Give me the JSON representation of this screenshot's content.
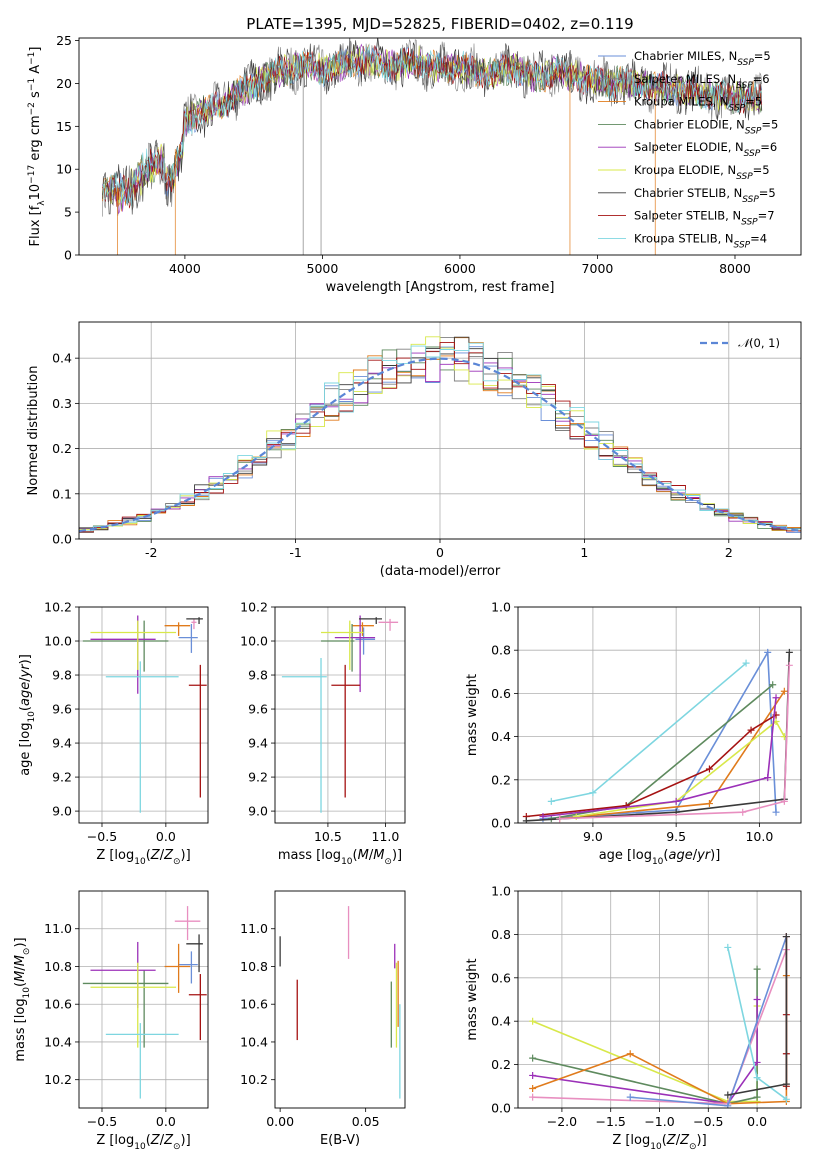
{
  "figure_title": "PLATE=1395, MJD=52825, FIBERID=0402, z=0.119",
  "models": [
    {
      "name": "Chabrier MILES",
      "nssp": "5",
      "color": "#6a8fd8"
    },
    {
      "name": "Salpeter MILES",
      "nssp": "6",
      "color": "#808080"
    },
    {
      "name": "Kroupa MILES",
      "nssp": "5",
      "color": "#e07b1c"
    },
    {
      "name": "Chabrier ELODIE",
      "nssp": "5",
      "color": "#5e8a5e"
    },
    {
      "name": "Salpeter ELODIE",
      "nssp": "6",
      "color": "#9b30b8"
    },
    {
      "name": "Kroupa ELODIE",
      "nssp": "5",
      "color": "#d8e84a"
    },
    {
      "name": "Chabrier STELIB",
      "nssp": "5",
      "color": "#3a3a3a"
    },
    {
      "name": "Salpeter STELIB",
      "nssp": "7",
      "color": "#a51212"
    },
    {
      "name": "Kroupa STELIB",
      "nssp": "4",
      "color": "#7ed6e0"
    }
  ],
  "chart_data": [
    {
      "id": "spectrum",
      "type": "line",
      "xlabel": "wavelength [Angstrom, rest frame]",
      "ylabel": "Flux [f_λ10^-17 erg cm^-2 s^-1 A^-1]",
      "xlim": [
        3230,
        8480
      ],
      "ylim": [
        0,
        25.3
      ],
      "xticks": [
        4000,
        5000,
        6000,
        7000,
        8000
      ],
      "yticks": [
        0,
        5,
        10,
        15,
        20,
        25
      ],
      "x": [
        3400,
        3500,
        3600,
        3700,
        3800,
        3900,
        4000,
        4100,
        4200,
        4300,
        4400,
        4500,
        4600,
        4700,
        4800,
        4900,
        5000,
        5100,
        5200,
        5300,
        5400,
        5500,
        5600,
        5700,
        5800,
        5900,
        6000,
        6100,
        6200,
        6300,
        6400,
        6500,
        6600,
        6700,
        6800,
        6900,
        7000,
        7100,
        7200,
        7300,
        7400,
        7500,
        7600,
        7700,
        7800,
        7900,
        8000,
        8100,
        8200
      ],
      "y": [
        7.5,
        7.8,
        8.5,
        10.5,
        12.0,
        11.0,
        15.5,
        16.5,
        17.0,
        17.8,
        19.0,
        19.8,
        20.8,
        21.5,
        21.8,
        22.0,
        21.5,
        22.0,
        22.5,
        22.8,
        22.5,
        22.0,
        22.3,
        22.5,
        22.0,
        21.8,
        22.0,
        21.5,
        21.0,
        21.5,
        21.8,
        21.0,
        20.8,
        21.5,
        21.0,
        20.5,
        20.3,
        20.0,
        20.3,
        19.8,
        19.5,
        19.5,
        19.3,
        19.0,
        18.8,
        18.5,
        18.3,
        18.5,
        18.2
      ]
    },
    {
      "id": "residuals",
      "type": "step",
      "xlabel": "(data-model)/error",
      "ylabel": "Normed distribution",
      "xlim": [
        -2.5,
        2.5
      ],
      "ylim": [
        0,
        0.48
      ],
      "xticks": [
        -2,
        -1,
        0,
        1,
        2
      ],
      "yticks": [
        0.0,
        0.1,
        0.2,
        0.3,
        0.4
      ],
      "grid": true,
      "legend": "N(0,1)",
      "bin_width": 0.1
    },
    {
      "id": "age_vs_Z",
      "type": "errorbar",
      "xlabel": "Z [log10(Z/Z⊙)]",
      "ylabel": "age [log10(age/yr)]",
      "xlim": [
        -0.68,
        0.33
      ],
      "ylim": [
        8.93,
        10.2
      ],
      "xticks": [
        -0.5,
        0.0
      ],
      "yticks": [
        9.0,
        9.2,
        9.4,
        9.6,
        9.8,
        10.0,
        10.2
      ],
      "grid": true,
      "points": [
        {
          "x": 0.2,
          "y": 10.02,
          "xerr": [
            0.1,
            0.05
          ],
          "yerr": [
            0.09,
            0.08
          ],
          "color": "#6a8fd8"
        },
        {
          "x": 0.22,
          "y": 10.11,
          "xerr": [
            0.02,
            0.02
          ],
          "yerr": [
            0.04,
            0.02
          ],
          "color": "#e88fc0"
        },
        {
          "x": 0.1,
          "y": 10.09,
          "xerr": [
            0.11,
            0.09
          ],
          "yerr": [
            0.06,
            0.02
          ],
          "color": "#e07b1c"
        },
        {
          "x": -0.17,
          "y": 10.0,
          "xerr": [
            0.48,
            0.19
          ],
          "yerr": [
            0.18,
            0.12
          ],
          "color": "#5e8a5e"
        },
        {
          "x": -0.22,
          "y": 10.01,
          "xerr": [
            0.37,
            0.14
          ],
          "yerr": [
            0.32,
            0.14
          ],
          "color": "#9b30b8"
        },
        {
          "x": -0.22,
          "y": 10.05,
          "xerr": [
            0.37,
            0.3
          ],
          "yerr": [
            0.22,
            0.07
          ],
          "color": "#d8e84a"
        },
        {
          "x": 0.26,
          "y": 10.13,
          "xerr": [
            0.1,
            0.03
          ],
          "yerr": [
            0.03,
            0.01
          ],
          "color": "#3a3a3a"
        },
        {
          "x": 0.27,
          "y": 9.74,
          "xerr": [
            0.09,
            0.05
          ],
          "yerr": [
            0.66,
            0.12
          ],
          "color": "#a51212"
        },
        {
          "x": -0.2,
          "y": 9.79,
          "xerr": [
            0.27,
            0.3
          ],
          "yerr": [
            0.8,
            0.09
          ],
          "color": "#7ed6e0"
        }
      ]
    },
    {
      "id": "age_vs_mass",
      "type": "errorbar",
      "xlabel": "mass [log10(M/M⊙)]",
      "ylabel": "",
      "xlim": [
        10.04,
        11.17
      ],
      "ylim": [
        8.93,
        10.2
      ],
      "xticks": [
        10.5,
        11.0
      ],
      "yticks": [
        9.0,
        9.2,
        9.4,
        9.6,
        9.8,
        10.0,
        10.2
      ],
      "grid": true,
      "points": [
        {
          "x": 10.81,
          "y": 10.01,
          "xerr": [
            0.07,
            0.1
          ],
          "yerr": [
            0.09,
            0.07
          ],
          "color": "#6a8fd8"
        },
        {
          "x": 11.04,
          "y": 10.11,
          "xerr": [
            0.1,
            0.07
          ],
          "yerr": [
            0.05,
            0.02
          ],
          "color": "#e88fc0"
        },
        {
          "x": 10.8,
          "y": 10.09,
          "xerr": [
            0.09,
            0.1
          ],
          "yerr": [
            0.06,
            0.02
          ],
          "color": "#e07b1c"
        },
        {
          "x": 10.71,
          "y": 10.0,
          "xerr": [
            0.27,
            0.02
          ],
          "yerr": [
            0.18,
            0.1
          ],
          "color": "#5e8a5e"
        },
        {
          "x": 10.78,
          "y": 10.02,
          "xerr": [
            0.22,
            0.13
          ],
          "yerr": [
            0.32,
            0.13
          ],
          "color": "#9b30b8"
        },
        {
          "x": 10.69,
          "y": 10.05,
          "xerr": [
            0.25,
            0.12
          ],
          "yerr": [
            0.22,
            0.07
          ],
          "color": "#d8e84a"
        },
        {
          "x": 10.92,
          "y": 10.13,
          "xerr": [
            0.15,
            0.05
          ],
          "yerr": [
            0.03,
            0.01
          ],
          "color": "#3a3a3a"
        },
        {
          "x": 10.65,
          "y": 9.74,
          "xerr": [
            0.12,
            0.13
          ],
          "yerr": [
            0.66,
            0.12
          ],
          "color": "#a51212"
        },
        {
          "x": 10.44,
          "y": 9.79,
          "xerr": [
            0.34,
            0.05
          ],
          "yerr": [
            0.8,
            0.11
          ],
          "color": "#7ed6e0"
        }
      ]
    },
    {
      "id": "mass_weight_vs_age",
      "type": "line",
      "xlabel": "age [log10(age/yr)]",
      "ylabel": "mass weight",
      "xlim": [
        8.55,
        10.25
      ],
      "ylim": [
        0,
        1.0
      ],
      "xticks": [
        9.0,
        9.5,
        10.0
      ],
      "yticks": [
        0.0,
        0.2,
        0.4,
        0.6,
        0.8,
        1.0
      ],
      "grid": true,
      "series": [
        {
          "color": "#7ed6e0",
          "x": [
            8.75,
            9.0,
            9.92
          ],
          "y": [
            0.1,
            0.14,
            0.74
          ]
        },
        {
          "color": "#6a8fd8",
          "x": [
            8.7,
            9.5,
            10.05,
            10.1
          ],
          "y": [
            0.02,
            0.06,
            0.79,
            0.05
          ]
        },
        {
          "color": "#5e8a5e",
          "x": [
            8.75,
            9.2,
            10.08
          ],
          "y": [
            0.02,
            0.08,
            0.64
          ]
        },
        {
          "color": "#e07b1c",
          "x": [
            8.8,
            9.7,
            10.15
          ],
          "y": [
            0.02,
            0.09,
            0.61
          ]
        },
        {
          "color": "#d8e84a",
          "x": [
            8.9,
            9.5,
            10.1,
            10.15
          ],
          "y": [
            0.03,
            0.1,
            0.47,
            0.4
          ]
        },
        {
          "color": "#a51212",
          "x": [
            8.6,
            9.2,
            9.7,
            9.95,
            10.1
          ],
          "y": [
            0.03,
            0.08,
            0.25,
            0.43,
            0.5
          ]
        },
        {
          "color": "#9b30b8",
          "x": [
            8.7,
            9.5,
            10.05,
            10.1
          ],
          "y": [
            0.03,
            0.1,
            0.21,
            0.58
          ]
        },
        {
          "color": "#3a3a3a",
          "x": [
            8.6,
            9.5,
            10.15,
            10.18
          ],
          "y": [
            0.01,
            0.05,
            0.11,
            0.79
          ]
        },
        {
          "color": "#e88fc0",
          "x": [
            8.8,
            9.9,
            10.15,
            10.18
          ],
          "y": [
            0.02,
            0.05,
            0.1,
            0.73
          ]
        }
      ]
    },
    {
      "id": "mass_vs_Z",
      "type": "errorbar",
      "xlabel": "Z [log10(Z/Z⊙)]",
      "ylabel": "mass [log10(M/M⊙)]",
      "xlim": [
        -0.68,
        0.33
      ],
      "ylim": [
        10.05,
        11.2
      ],
      "xticks": [
        -0.5,
        0.0
      ],
      "yticks": [
        10.2,
        10.4,
        10.6,
        10.8,
        11.0
      ],
      "grid": true,
      "points": [
        {
          "x": 0.2,
          "y": 10.81,
          "xerr": [
            0.1,
            0.05
          ],
          "yerr": [
            0.1,
            0.07
          ],
          "color": "#6a8fd8"
        },
        {
          "x": 0.17,
          "y": 11.04,
          "xerr": [
            0.1,
            0.1
          ],
          "yerr": [
            0.1,
            0.08
          ],
          "color": "#e88fc0"
        },
        {
          "x": 0.1,
          "y": 10.8,
          "xerr": [
            0.11,
            0.09
          ],
          "yerr": [
            0.14,
            0.12
          ],
          "color": "#e07b1c"
        },
        {
          "x": -0.17,
          "y": 10.71,
          "xerr": [
            0.48,
            0.19
          ],
          "yerr": [
            0.34,
            0.07
          ],
          "color": "#5e8a5e"
        },
        {
          "x": -0.22,
          "y": 10.78,
          "xerr": [
            0.37,
            0.14
          ],
          "yerr": [
            0.2,
            0.15
          ],
          "color": "#9b30b8"
        },
        {
          "x": -0.22,
          "y": 10.69,
          "xerr": [
            0.37,
            0.3
          ],
          "yerr": [
            0.32,
            0.13
          ],
          "color": "#d8e84a"
        },
        {
          "x": 0.26,
          "y": 10.92,
          "xerr": [
            0.1,
            0.03
          ],
          "yerr": [
            0.15,
            0.05
          ],
          "color": "#3a3a3a"
        },
        {
          "x": 0.27,
          "y": 10.65,
          "xerr": [
            0.09,
            0.05
          ],
          "yerr": [
            0.24,
            0.11
          ],
          "color": "#a51212"
        },
        {
          "x": -0.2,
          "y": 10.44,
          "xerr": [
            0.27,
            0.3
          ],
          "yerr": [
            0.34,
            0.06
          ],
          "color": "#7ed6e0"
        }
      ]
    },
    {
      "id": "mass_vs_EBV",
      "type": "errorbar",
      "xlabel": "E(B-V)",
      "ylabel": "",
      "xlim": [
        -0.003,
        0.073
      ],
      "ylim": [
        10.05,
        11.2
      ],
      "xticks": [
        0.0,
        0.05
      ],
      "yticks": [
        10.2,
        10.4,
        10.6,
        10.8,
        11.0
      ],
      "grid": false,
      "points": [
        {
          "x": 0.0,
          "y": 10.88,
          "xerr": [
            0,
            0
          ],
          "yerr": [
            0.08,
            0.08
          ],
          "color": "#3a3a3a"
        },
        {
          "x": 0.01,
          "y": 10.61,
          "xerr": [
            0,
            0
          ],
          "yerr": [
            0.2,
            0.12
          ],
          "color": "#a51212"
        },
        {
          "x": 0.04,
          "y": 10.98,
          "xerr": [
            0,
            0
          ],
          "yerr": [
            0.14,
            0.14
          ],
          "color": "#e88fc0"
        },
        {
          "x": 0.065,
          "y": 10.55,
          "xerr": [
            0,
            0
          ],
          "yerr": [
            0.18,
            0.17
          ],
          "color": "#5e8a5e"
        },
        {
          "x": 0.067,
          "y": 10.85,
          "xerr": [
            0,
            0
          ],
          "yerr": [
            0.06,
            0.07
          ],
          "color": "#9b30b8"
        },
        {
          "x": 0.068,
          "y": 10.6,
          "xerr": [
            0,
            0
          ],
          "yerr": [
            0.23,
            0.22
          ],
          "color": "#d8e84a"
        },
        {
          "x": 0.069,
          "y": 10.65,
          "xerr": [
            0,
            0
          ],
          "yerr": [
            0.17,
            0.18
          ],
          "color": "#e07b1c"
        },
        {
          "x": 0.07,
          "y": 10.35,
          "xerr": [
            0,
            0
          ],
          "yerr": [
            0.25,
            0.25
          ],
          "color": "#7ed6e0"
        }
      ]
    },
    {
      "id": "mass_weight_vs_Z",
      "type": "line",
      "xlabel": "Z [log10(Z/Z⊙)]",
      "ylabel": "mass weight",
      "xlim": [
        -2.45,
        0.45
      ],
      "ylim": [
        0,
        1.0
      ],
      "xticks": [
        -2.0,
        -1.5,
        -1.0,
        -0.5,
        0.0
      ],
      "yticks": [
        0.0,
        0.2,
        0.4,
        0.6,
        0.8,
        1.0
      ],
      "grid": true,
      "series": [
        {
          "color": "#d8e84a",
          "x": [
            -2.3,
            -0.3,
            0.0,
            0.0
          ],
          "y": [
            0.4,
            0.03,
            0.03,
            0.47
          ]
        },
        {
          "color": "#5e8a5e",
          "x": [
            -2.3,
            -0.3,
            0.0,
            0.0
          ],
          "y": [
            0.23,
            0.02,
            0.05,
            0.64
          ]
        },
        {
          "color": "#9b30b8",
          "x": [
            -2.3,
            -0.3,
            0.0,
            0.0
          ],
          "y": [
            0.15,
            0.02,
            0.21,
            0.5
          ]
        },
        {
          "color": "#e07b1c",
          "x": [
            -2.3,
            -1.3,
            -0.3,
            0.3,
            0.3
          ],
          "y": [
            0.09,
            0.25,
            0.02,
            0.03,
            0.61
          ]
        },
        {
          "color": "#e88fc0",
          "x": [
            -2.3,
            -0.3,
            0.3
          ],
          "y": [
            0.05,
            0.02,
            0.73
          ]
        },
        {
          "color": "#6a8fd8",
          "x": [
            -1.3,
            -0.3,
            0.3
          ],
          "y": [
            0.05,
            0.01,
            0.79
          ]
        },
        {
          "color": "#7ed6e0",
          "x": [
            -0.3,
            0.0,
            0.3
          ],
          "y": [
            0.74,
            0.14,
            0.04
          ]
        },
        {
          "color": "#a51212",
          "x": [
            0.3,
            0.3,
            0.3,
            0.3
          ],
          "y": [
            0.1,
            0.25,
            0.43,
            0.79
          ]
        },
        {
          "color": "#3a3a3a",
          "x": [
            -0.3,
            0.3,
            0.3
          ],
          "y": [
            0.06,
            0.11,
            0.79
          ]
        }
      ]
    }
  ]
}
